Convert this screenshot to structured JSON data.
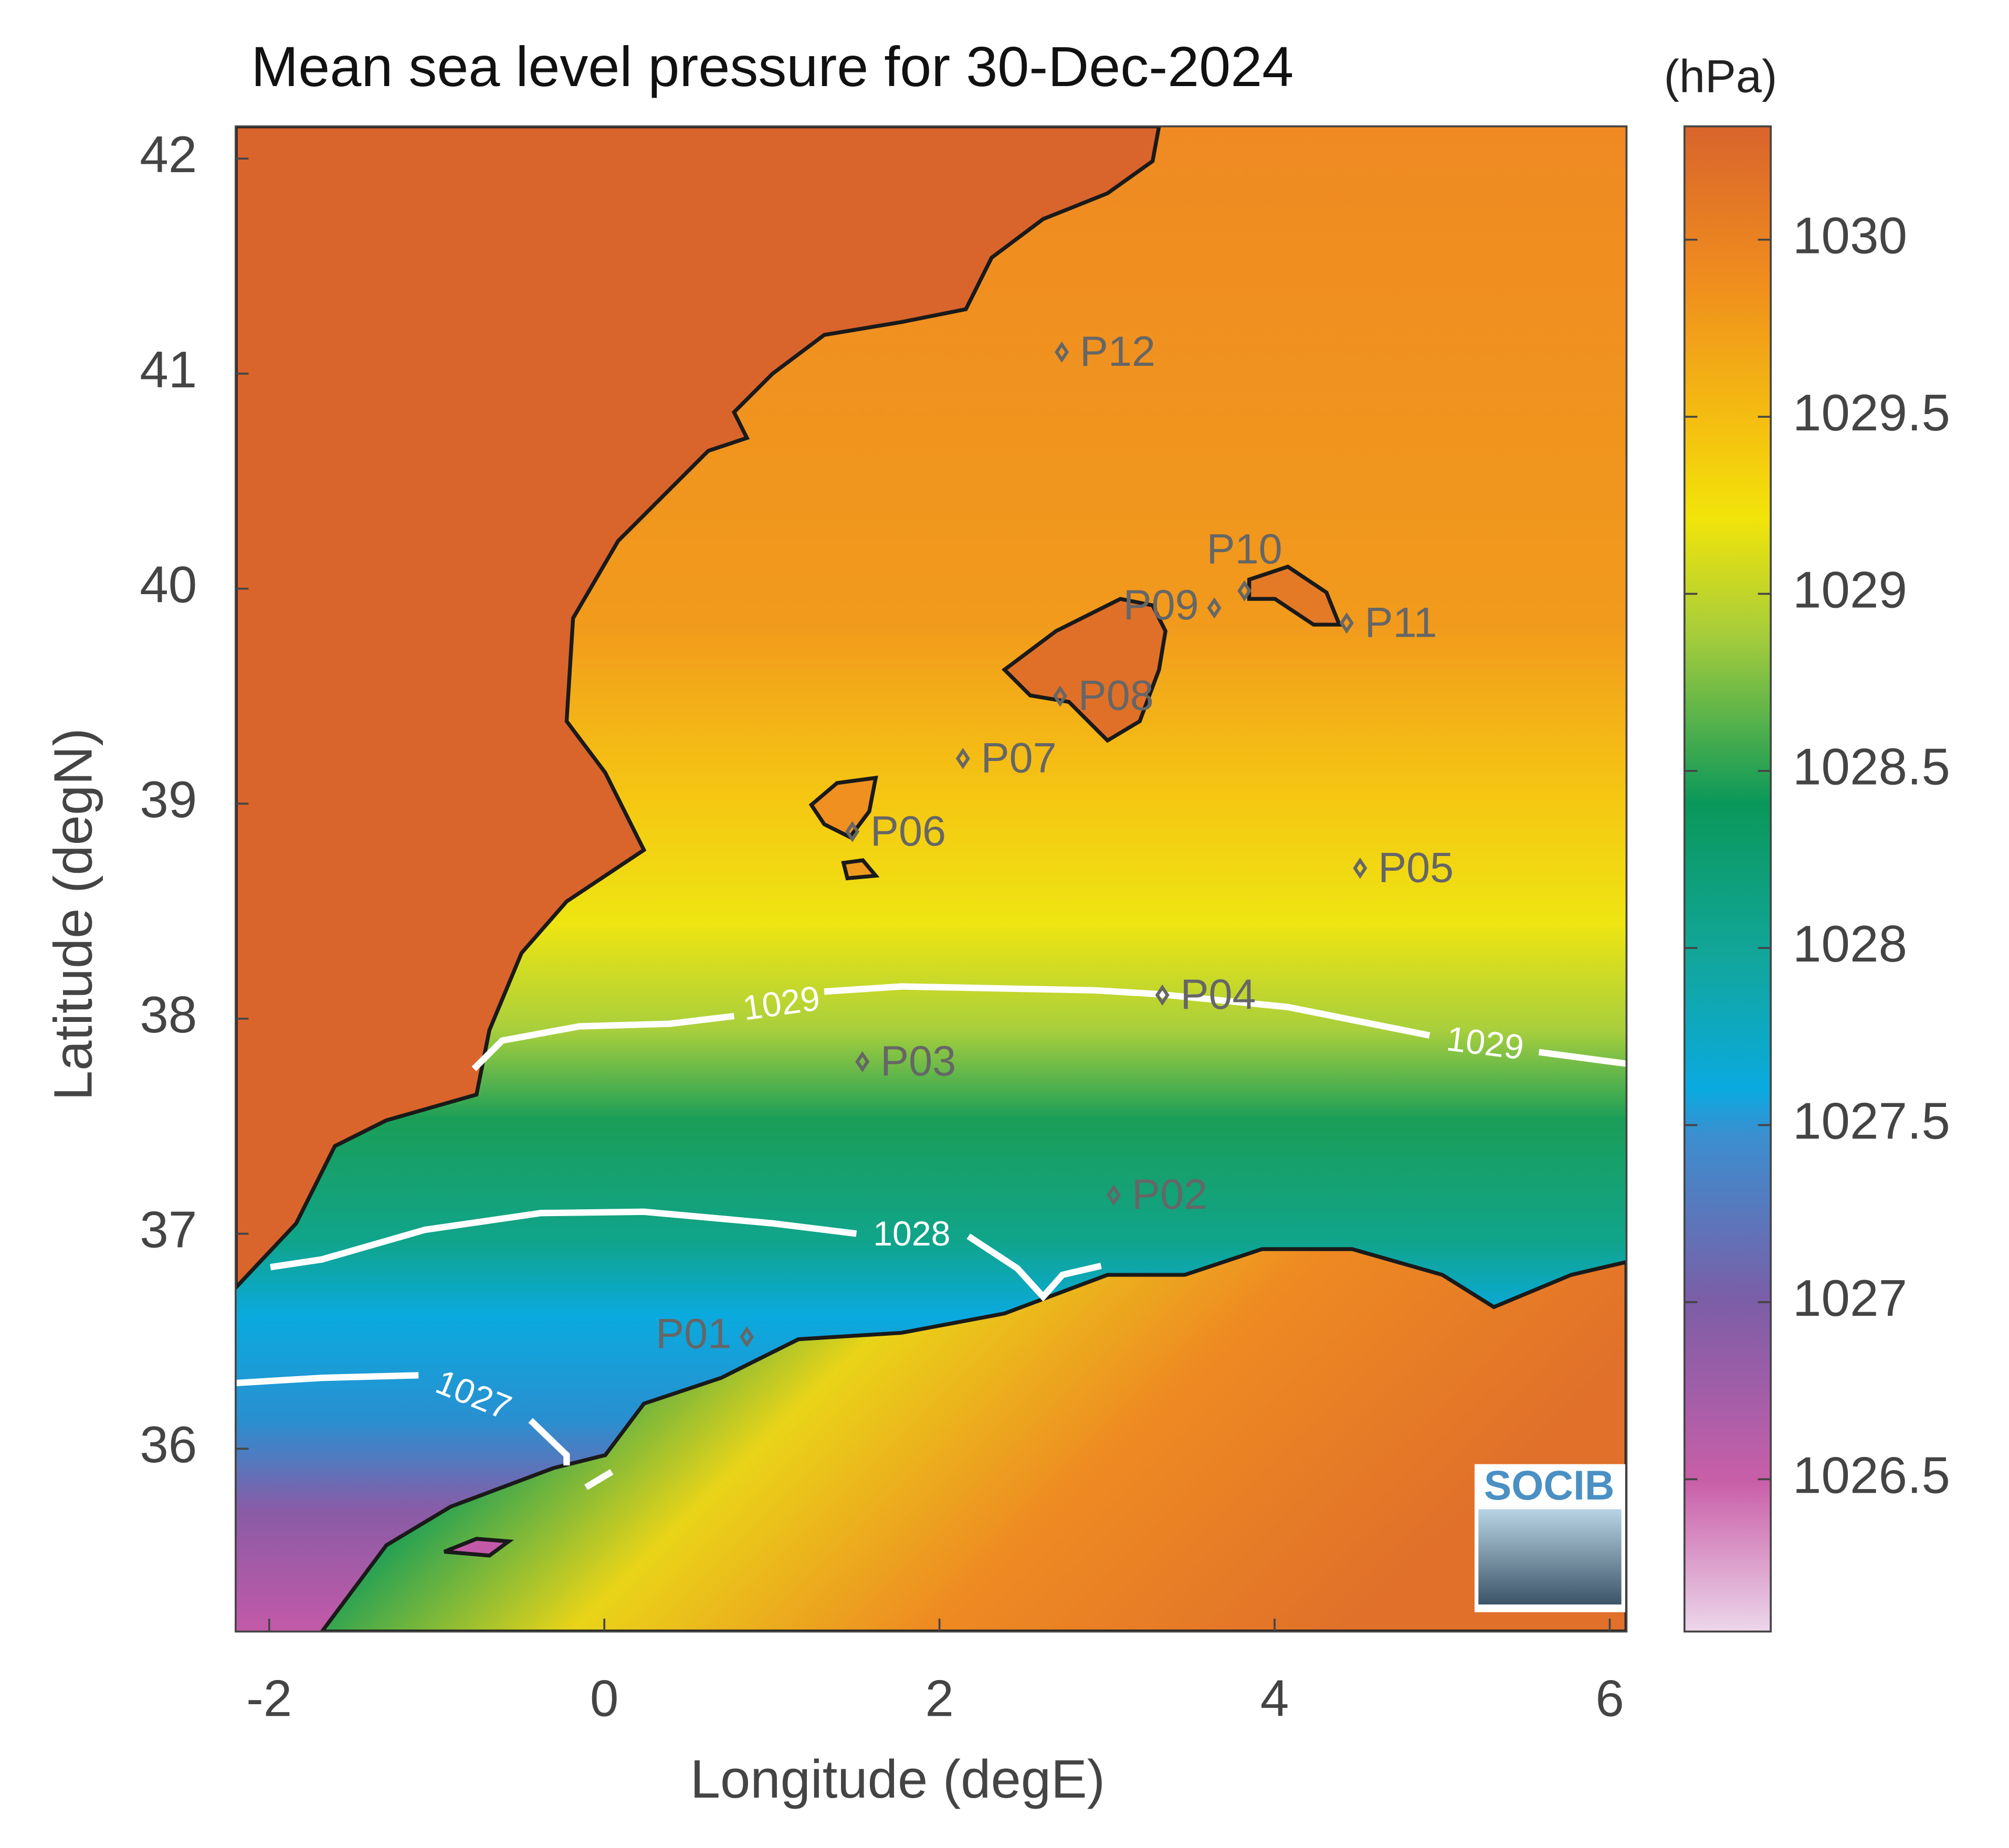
{
  "map": {
    "title": "Mean sea level pressure for 30-Dec-2024",
    "xlabel": "Longitude (degE)",
    "ylabel": "Latitude (degN)",
    "xlim": [
      -2.2,
      6.1
    ],
    "ylim": [
      35.15,
      42.15
    ],
    "xticks": [
      -2,
      0,
      2,
      4,
      6
    ],
    "yticks": [
      36,
      37,
      38,
      39,
      40,
      41,
      42
    ],
    "colorbar": {
      "label": "(hPa)",
      "lim": [
        1026.07,
        1030.32
      ],
      "ticks": [
        1026.5,
        1027,
        1027.5,
        1028,
        1028.5,
        1029,
        1029.5,
        1030
      ]
    },
    "contours": [
      1029,
      1028,
      1027
    ],
    "points": [
      {
        "name": "P01",
        "lon": 0.85,
        "lat": 36.52
      },
      {
        "name": "P02",
        "lon": 3.04,
        "lat": 37.18
      },
      {
        "name": "P03",
        "lon": 1.54,
        "lat": 37.8
      },
      {
        "name": "P04",
        "lon": 3.33,
        "lat": 38.11
      },
      {
        "name": "P05",
        "lon": 4.51,
        "lat": 38.7
      },
      {
        "name": "P06",
        "lon": 1.48,
        "lat": 38.87
      },
      {
        "name": "P07",
        "lon": 2.14,
        "lat": 39.21
      },
      {
        "name": "P08",
        "lon": 2.72,
        "lat": 39.5
      },
      {
        "name": "P09",
        "lon": 3.64,
        "lat": 39.91
      },
      {
        "name": "P10",
        "lon": 3.82,
        "lat": 39.99
      },
      {
        "name": "P11",
        "lon": 4.43,
        "lat": 39.84
      },
      {
        "name": "P12",
        "lon": 2.73,
        "lat": 41.1
      }
    ],
    "logo": "SOCIB"
  }
}
